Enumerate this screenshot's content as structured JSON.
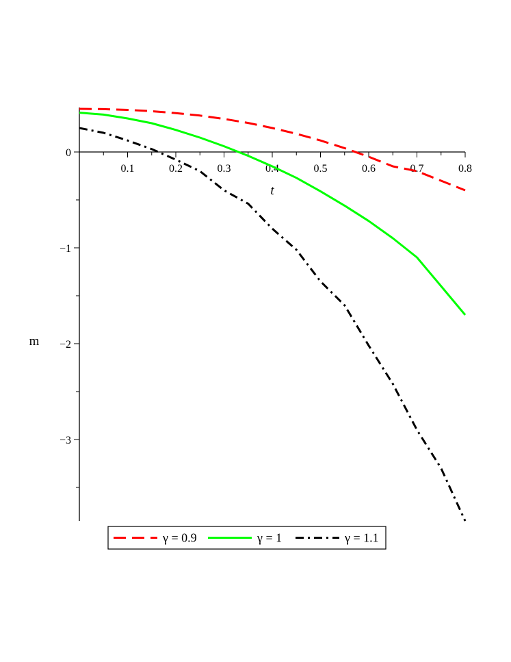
{
  "chart_data": {
    "type": "line",
    "title": "",
    "xlabel": "t",
    "ylabel": "m",
    "xlim": [
      0,
      0.8
    ],
    "ylim": [
      -3.85,
      0.45
    ],
    "x_ticks": [
      {
        "value": 0.1,
        "label": "0.1"
      },
      {
        "value": 0.2,
        "label": "0.2"
      },
      {
        "value": 0.3,
        "label": "0.3"
      },
      {
        "value": 0.4,
        "label": "0.4"
      },
      {
        "value": 0.5,
        "label": "0.5"
      },
      {
        "value": 0.6,
        "label": "0.6"
      },
      {
        "value": 0.7,
        "label": "0.7"
      },
      {
        "value": 0.8,
        "label": "0.8"
      }
    ],
    "y_ticks": [
      {
        "value": 0,
        "label": "0"
      },
      {
        "value": -1,
        "label": "−1"
      },
      {
        "value": -2,
        "label": "−2"
      },
      {
        "value": -3,
        "label": "−3"
      }
    ],
    "grid": false,
    "legend_position": "bottom",
    "x": [
      0,
      0.05,
      0.1,
      0.15,
      0.2,
      0.25,
      0.3,
      0.35,
      0.4,
      0.45,
      0.5,
      0.55,
      0.6,
      0.65,
      0.7,
      0.75,
      0.8
    ],
    "series": [
      {
        "name": "γ = 0.9",
        "color": "#ff0000",
        "dash": "dash",
        "values": [
          0.45,
          0.447,
          0.439,
          0.426,
          0.406,
          0.38,
          0.345,
          0.303,
          0.25,
          0.19,
          0.12,
          0.04,
          -0.05,
          -0.15,
          -0.2,
          -0.3,
          -0.4
        ]
      },
      {
        "name": "γ = 1",
        "color": "#00ff00",
        "dash": "solid",
        "values": [
          0.41,
          0.39,
          0.35,
          0.3,
          0.23,
          0.15,
          0.06,
          -0.04,
          -0.15,
          -0.27,
          -0.41,
          -0.56,
          -0.72,
          -0.9,
          -1.1,
          -1.4,
          -1.7
        ]
      },
      {
        "name": "γ = 1.1",
        "color": "#000000",
        "dash": "dashdot",
        "values": [
          0.25,
          0.2,
          0.12,
          0.03,
          -0.08,
          -0.2,
          -0.4,
          -0.54,
          -0.8,
          -1.02,
          -1.35,
          -1.6,
          -2.02,
          -2.42,
          -2.9,
          -3.3,
          -3.85
        ]
      }
    ]
  }
}
